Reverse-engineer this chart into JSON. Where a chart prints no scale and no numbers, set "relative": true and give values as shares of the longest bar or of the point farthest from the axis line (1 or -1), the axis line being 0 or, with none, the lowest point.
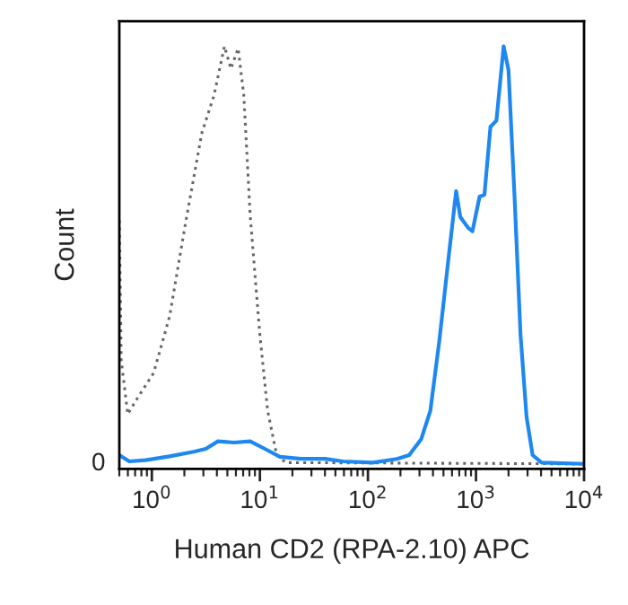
{
  "chart_data": {
    "type": "line",
    "relative": true,
    "xlabel": "Human CD2 (RPA-2.10) APC",
    "ylabel": "Count",
    "log": "x",
    "xlim": [
      0.5,
      10000
    ],
    "xticks": [
      {
        "value": 1,
        "label": "10$^{0}$"
      },
      {
        "value": 10,
        "label": "10$^{1}$"
      },
      {
        "value": 100,
        "label": "10$^{2}$"
      },
      {
        "value": 1000,
        "label": "10$^{3}$"
      },
      {
        "value": 10000,
        "label": "10$^{4}$"
      }
    ],
    "tick_labels": "x",
    "grid": false,
    "legend": false,
    "marker": "none",
    "annotations": [
      "0"
    ],
    "series": [
      {
        "color": "#666666",
        "line_style": "dotted",
        "x": [
          0.5,
          0.521,
          0.598,
          0.734,
          1.04,
          1.46,
          2.06,
          2.9,
          3.76,
          4.7,
          5.39,
          6.29,
          7.1,
          8.13,
          10,
          11.8,
          14.3,
          17.4,
          10000
        ],
        "values": [
          0.583,
          0.248,
          0.119,
          0.157,
          0.218,
          0.353,
          0.58,
          0.792,
          0.882,
          1,
          0.946,
          0.995,
          0.882,
          0.595,
          0.308,
          0.127,
          0.021,
          0.003,
          0
        ]
      },
      {
        "color": "#1e88f0",
        "line_style": "solid",
        "x": [
          0.5,
          0.619,
          0.873,
          1.46,
          2.45,
          3.16,
          4.09,
          5.77,
          8.13,
          11.1,
          15.3,
          23.9,
          40,
          58.8,
          111,
          186,
          241,
          311,
          378,
          457,
          555,
          655,
          716,
          847,
          927,
          1080,
          1197,
          1361,
          1546,
          1803,
          1999,
          2274,
          2585,
          2939,
          3341,
          4047,
          10000
        ],
        "values": [
          0.021,
          0.006,
          0.009,
          0.018,
          0.029,
          0.036,
          0.054,
          0.051,
          0.054,
          0.036,
          0.017,
          0.012,
          0.012,
          0.006,
          0.003,
          0.012,
          0.021,
          0.059,
          0.127,
          0.293,
          0.489,
          0.653,
          0.591,
          0.565,
          0.557,
          0.64,
          0.644,
          0.807,
          0.822,
          1,
          0.943,
          0.64,
          0.308,
          0.112,
          0.021,
          0.003,
          0
        ]
      }
    ]
  }
}
